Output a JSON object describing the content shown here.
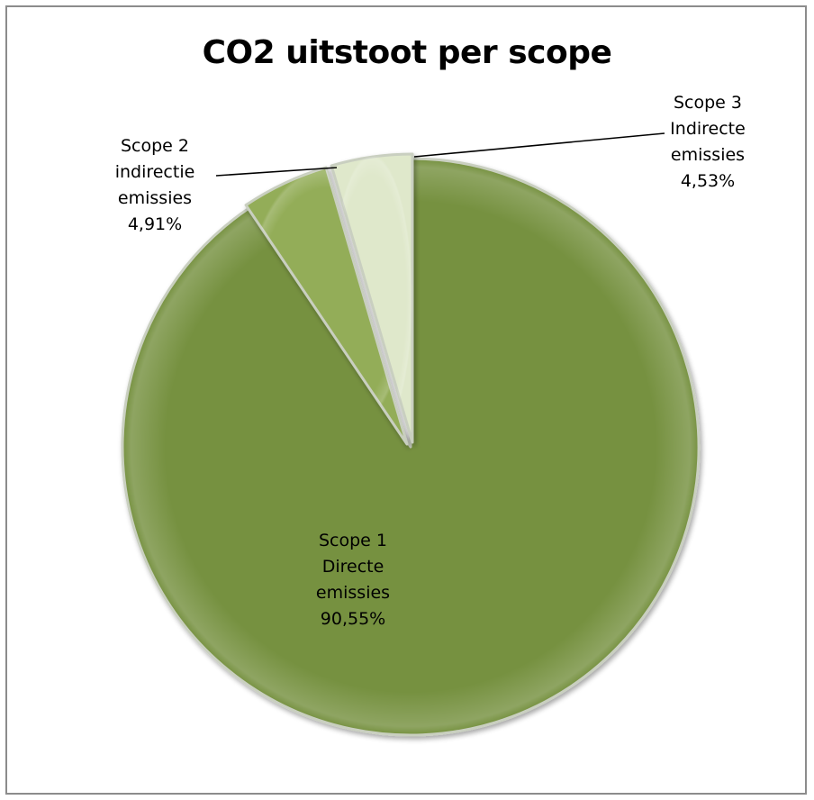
{
  "chart_data": {
    "type": "pie",
    "title": "CO2 uitstoot per scope",
    "slices": [
      {
        "label_lines": [
          "Scope 1",
          "Directe",
          "emissies"
        ],
        "value": 90.55,
        "value_label": "90,55%",
        "color": "#76913f"
      },
      {
        "label_lines": [
          "Scope 2",
          "indirectie",
          "emissies"
        ],
        "value": 4.91,
        "value_label": "4,91%",
        "color": "#93ad58"
      },
      {
        "label_lines": [
          "Scope 3",
          "Indirecte",
          "emissies"
        ],
        "value": 4.53,
        "value_label": "4,53%",
        "color": "#dfe8cb"
      }
    ]
  }
}
